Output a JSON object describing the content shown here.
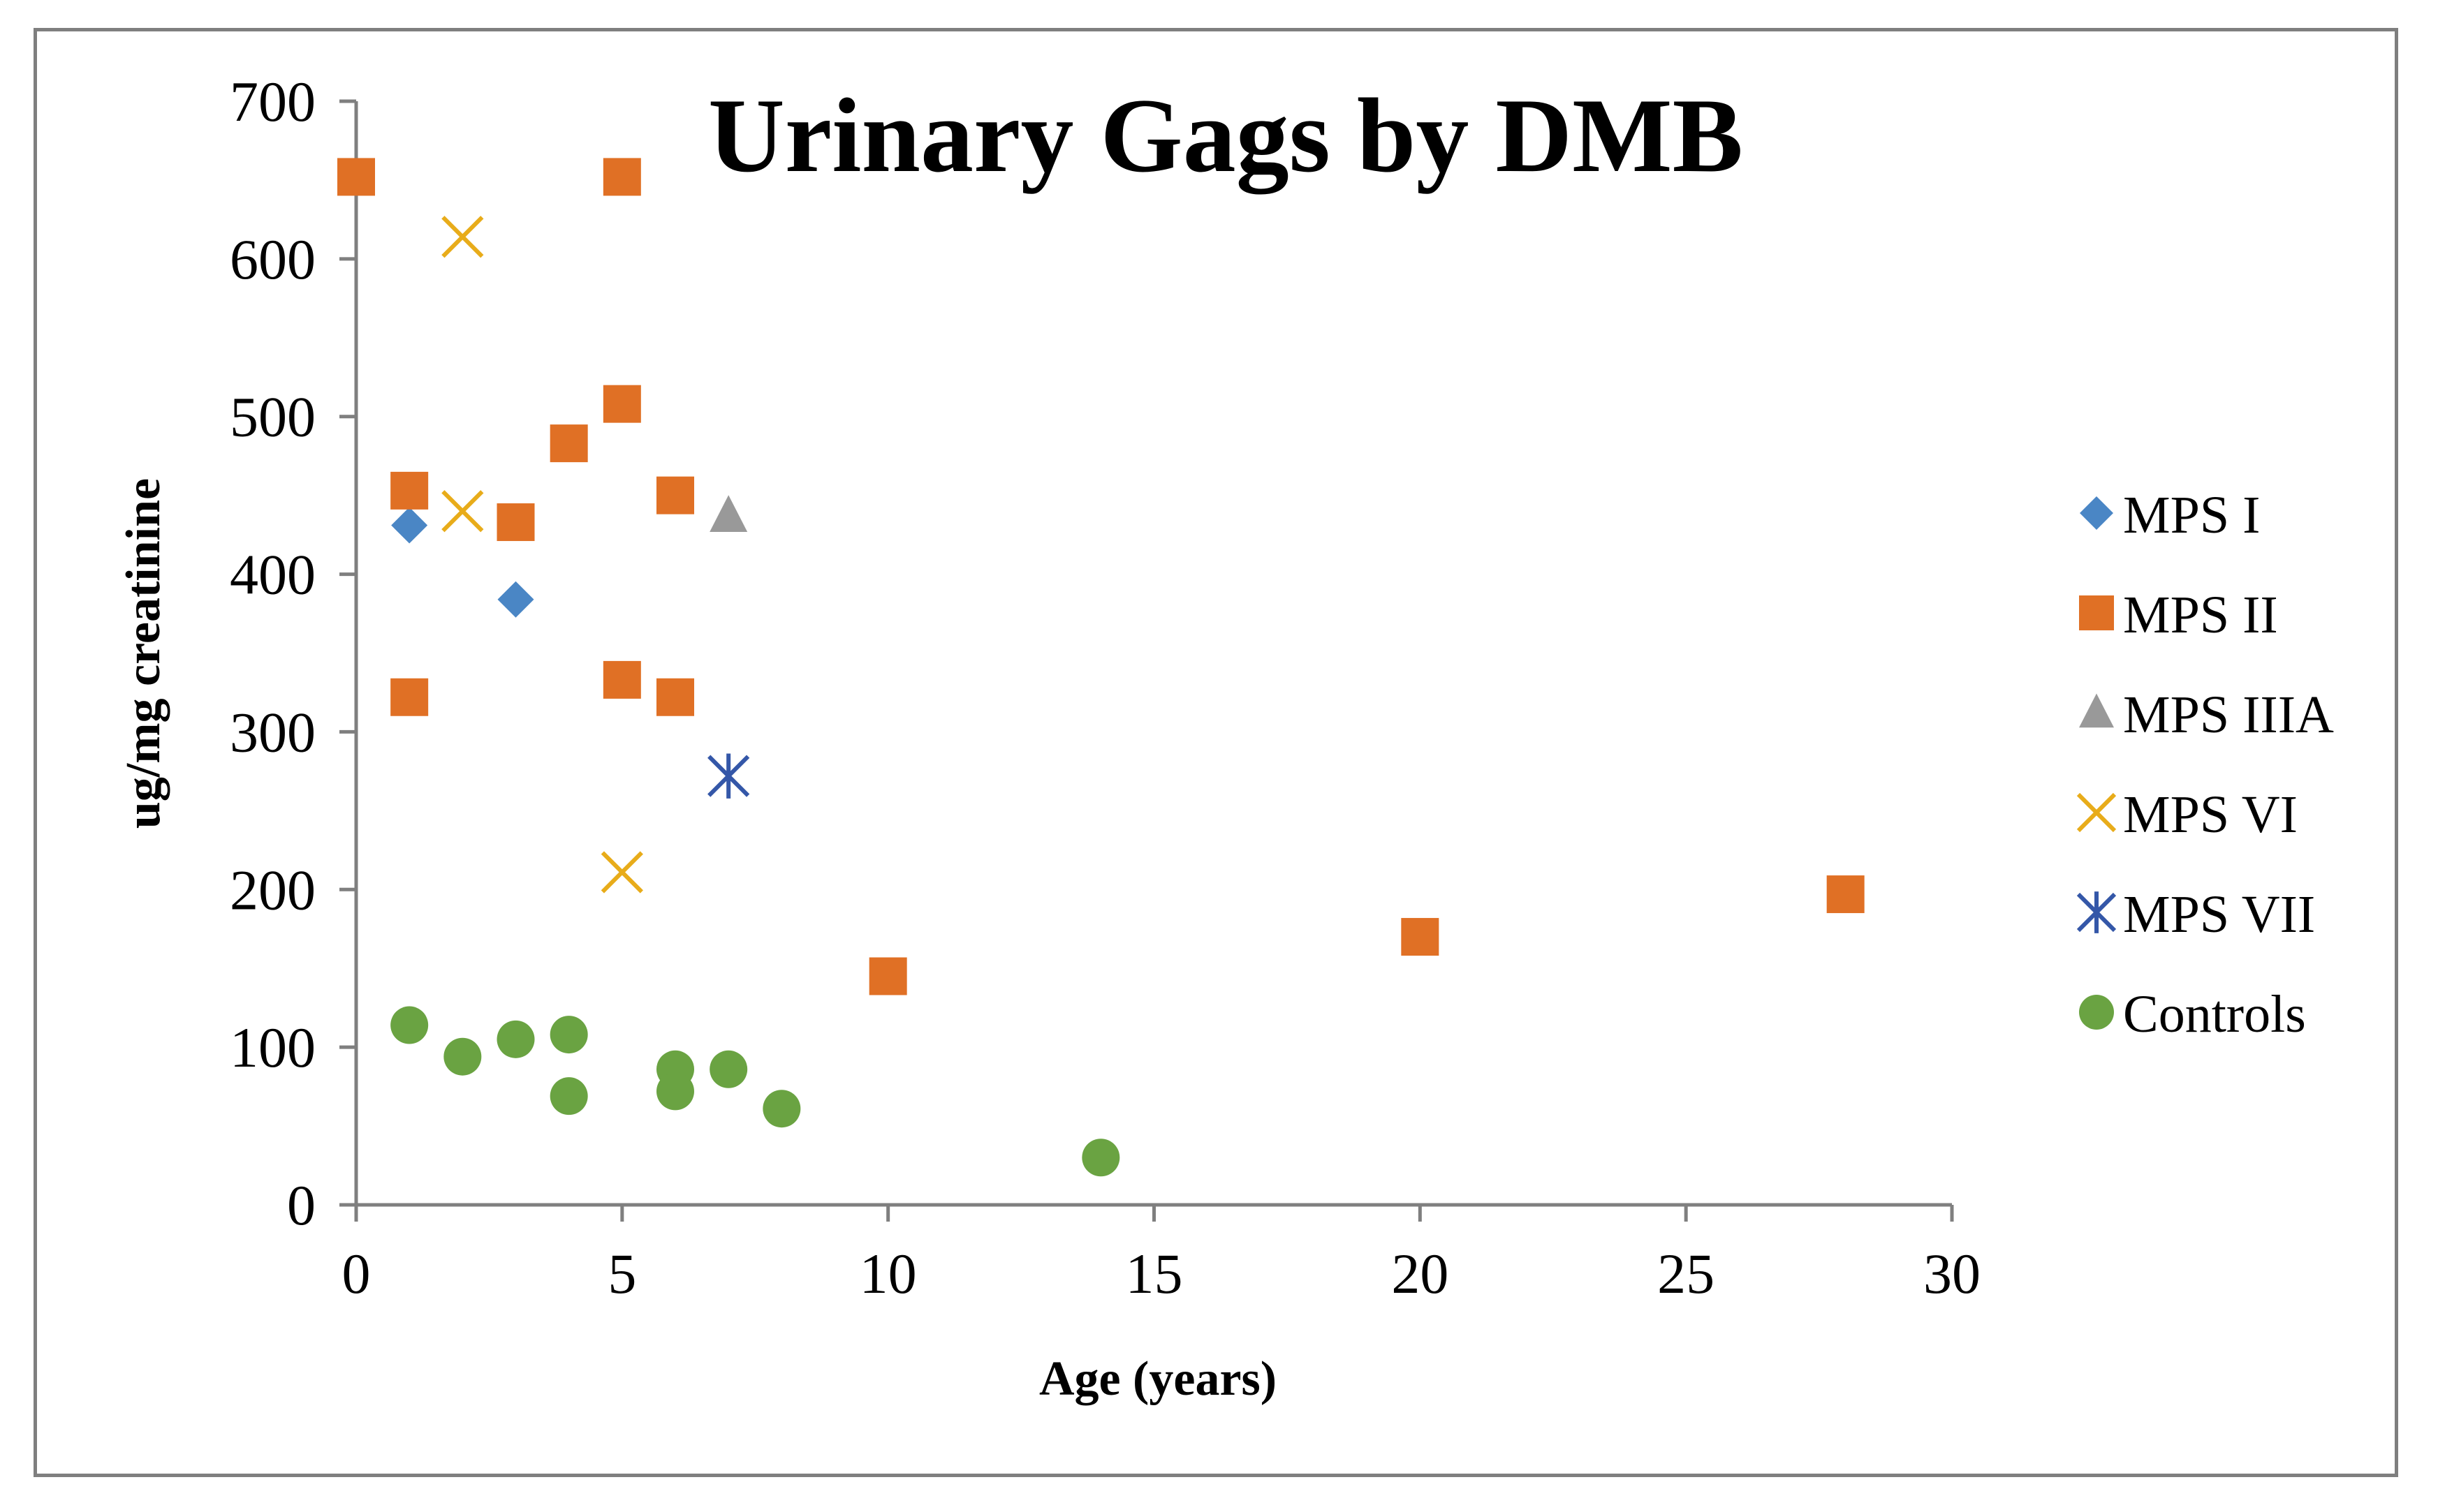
{
  "chart_data": {
    "type": "scatter",
    "title": "Urinary Gags by DMB",
    "xlabel": "Age (years)",
    "ylabel": "ug/mg creatinine",
    "xlim": [
      0,
      30
    ],
    "ylim": [
      0,
      700
    ],
    "xticks": [
      0,
      5,
      10,
      15,
      20,
      25,
      30
    ],
    "yticks": [
      0,
      100,
      200,
      300,
      400,
      500,
      600,
      700
    ],
    "grid": false,
    "legend_position": "right",
    "series": [
      {
        "name": "MPS I",
        "marker": "diamond",
        "color": "#4a86c5",
        "points": [
          [
            1,
            431
          ],
          [
            3,
            384
          ]
        ]
      },
      {
        "name": "MPS II",
        "marker": "square",
        "color": "#e07025",
        "points": [
          [
            0,
            652
          ],
          [
            5,
            652
          ],
          [
            5,
            508
          ],
          [
            4,
            483
          ],
          [
            1,
            453
          ],
          [
            6,
            450
          ],
          [
            3,
            433
          ],
          [
            5,
            333
          ],
          [
            1,
            322
          ],
          [
            6,
            322
          ],
          [
            10,
            145
          ],
          [
            20,
            170
          ],
          [
            28,
            197
          ]
        ]
      },
      {
        "name": "MPS IIIA",
        "marker": "triangle",
        "color": "#999999",
        "points": [
          [
            7,
            437
          ]
        ]
      },
      {
        "name": "MPS VI",
        "marker": "x",
        "color": "#e8ac1a",
        "points": [
          [
            2,
            614
          ],
          [
            2,
            440
          ],
          [
            5,
            211
          ]
        ]
      },
      {
        "name": "MPS VII",
        "marker": "star",
        "color": "#3457a8",
        "points": [
          [
            7,
            272
          ]
        ]
      },
      {
        "name": "Controls",
        "marker": "circle",
        "color": "#6aa342",
        "points": [
          [
            1,
            114
          ],
          [
            2,
            94
          ],
          [
            3,
            105
          ],
          [
            4,
            108
          ],
          [
            4,
            69
          ],
          [
            6,
            86
          ],
          [
            6,
            72
          ],
          [
            7,
            86
          ],
          [
            8,
            61
          ],
          [
            14,
            30
          ]
        ]
      }
    ]
  }
}
